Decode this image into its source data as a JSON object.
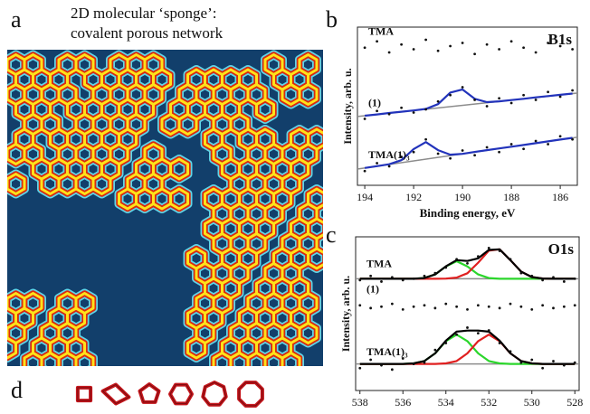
{
  "panel_labels": [
    "a",
    "b",
    "c",
    "d"
  ],
  "caption": [
    "2D molecular ‘sponge’:",
    "covalent porous network"
  ],
  "chart_data": [
    {
      "type": "line",
      "title": "B1s",
      "xlabel": "Binding energy, eV",
      "ylabel": "Intensity, arb. u.",
      "xlim": [
        194.3,
        185.3
      ],
      "ylim": [
        0,
        10
      ],
      "xticks": [
        194,
        192,
        190,
        188,
        186
      ],
      "x": [
        194,
        193.5,
        193,
        192.5,
        192,
        191.5,
        191,
        190.5,
        190,
        189.5,
        189,
        188.5,
        188,
        187.5,
        187,
        186.5,
        186,
        185.5
      ],
      "series": [
        {
          "name": "TMA",
          "color": "#111111",
          "dots": [
            8.7,
            9.1,
            8.4,
            8.9,
            8.6,
            9.2,
            8.5,
            8.8,
            9.0,
            8.3,
            8.9,
            8.6,
            9.1,
            8.7,
            8.4,
            9.0,
            8.8,
            8.6
          ],
          "fits": []
        },
        {
          "name": "(1)",
          "color": "#111111",
          "dots": [
            4.2,
            4.7,
            4.5,
            4.9,
            4.6,
            4.8,
            5.3,
            5.7,
            6.2,
            5.4,
            5.0,
            5.5,
            5.2,
            5.7,
            5.4,
            5.9,
            5.6,
            6.0
          ],
          "baseline": [
            4.35,
            5.83
          ],
          "baseline_color": "#8c8c8c",
          "fits": [
            {
              "color": "#2233bb",
              "values": [
                4.4,
                4.48,
                4.57,
                4.65,
                4.73,
                4.83,
                5.13,
                5.86,
                6.06,
                5.47,
                5.26,
                5.31,
                5.39,
                5.47,
                5.56,
                5.64,
                5.72,
                5.8
              ]
            }
          ]
        },
        {
          "name": "TMA(1)₃",
          "color": "#111111",
          "dots": [
            0.9,
            1.4,
            1.2,
            1.8,
            2.1,
            2.9,
            2.0,
            1.7,
            2.2,
            1.9,
            2.4,
            2.1,
            2.6,
            2.3,
            2.8,
            2.6,
            3.1,
            2.9
          ],
          "baseline": [
            1.03,
            3.04
          ],
          "baseline_color": "#8c8c8c",
          "fits": [
            {
              "color": "#2233bb",
              "values": [
                1.1,
                1.21,
                1.33,
                1.59,
                2.29,
                2.73,
                2.22,
                1.94,
                1.99,
                2.11,
                2.22,
                2.33,
                2.44,
                2.55,
                2.66,
                2.78,
                2.89,
                3.0
              ]
            }
          ]
        }
      ]
    },
    {
      "type": "line",
      "title": "O1s",
      "xlabel": "Binding energy, eV",
      "ylabel": "Intensity, arb. u.",
      "xlim": [
        538.2,
        527.8
      ],
      "ylim": [
        0,
        11
      ],
      "xticks": [
        538,
        536,
        534,
        532,
        530,
        528
      ],
      "x": [
        538,
        537.5,
        537,
        536.5,
        536,
        535.5,
        535,
        534.5,
        534,
        533.5,
        533,
        532.5,
        532,
        531.5,
        531,
        530.5,
        530,
        529.5,
        529,
        528.5,
        528
      ],
      "series": [
        {
          "name": "TMA",
          "color": "#111111",
          "dots": [
            7.9,
            8.2,
            7.8,
            8.1,
            7.9,
            8.0,
            8.2,
            8.4,
            8.8,
            9.4,
            9.1,
            9.6,
            10.2,
            10.0,
            9.4,
            8.4,
            8.2,
            7.9,
            8.1,
            7.8,
            8.0
          ],
          "baseline": [
            8.0,
            8.0
          ],
          "baseline_color": "#8c8c8c",
          "fits": [
            {
              "color": "#2bd62b",
              "values": [
                8.0,
                8.0,
                8.0,
                8.0,
                8.0,
                8.0,
                8.05,
                8.31,
                8.88,
                9.25,
                8.88,
                8.31,
                8.05,
                8.0,
                8.0,
                8.0,
                8.0,
                8.0,
                8.0,
                8.0,
                8.0
              ]
            },
            {
              "color": "#e02020",
              "values": [
                8.0,
                8.0,
                8.0,
                8.0,
                8.0,
                8.0,
                8.0,
                8.0,
                8.01,
                8.08,
                8.39,
                9.15,
                10.01,
                10.11,
                9.33,
                8.51,
                8.12,
                8.02,
                8.0,
                8.0,
                8.0
              ]
            },
            {
              "color": "#000000",
              "values": [
                8.0,
                8.0,
                8.0,
                8.0,
                8.0,
                8.0,
                8.05,
                8.31,
                8.89,
                9.33,
                9.27,
                9.46,
                10.06,
                10.11,
                9.33,
                8.51,
                8.12,
                8.02,
                8.0,
                8.0,
                8.0
              ]
            }
          ]
        },
        {
          "name": "(1)",
          "color": "#111111",
          "dots": [
            6.1,
            5.9,
            6.0,
            6.2,
            5.8,
            6.0,
            6.1,
            5.9,
            6.2,
            6.0,
            5.8,
            6.1,
            6.0,
            5.9,
            6.2,
            6.0,
            5.8,
            6.1,
            5.9,
            6.0,
            6.1
          ],
          "fits": []
        },
        {
          "name": "TMA(1)₃",
          "color": "#111111",
          "dots": [
            1.6,
            2.2,
            1.8,
            1.5,
            2.3,
            1.9,
            2.0,
            2.9,
            3.4,
            4.0,
            4.5,
            4.1,
            4.3,
            3.4,
            2.8,
            2.0,
            2.2,
            1.6,
            2.1,
            1.8,
            2.0
          ],
          "baseline": [
            1.9,
            1.9
          ],
          "baseline_color": "#8c8c8c",
          "fits": [
            {
              "color": "#2bd62b",
              "values": [
                1.9,
                1.9,
                1.9,
                1.9,
                1.9,
                1.94,
                2.11,
                2.66,
                3.53,
                4.0,
                3.53,
                2.66,
                2.11,
                1.94,
                1.9,
                1.9,
                1.9,
                1.9,
                1.9,
                1.9,
                1.9
              ]
            },
            {
              "color": "#e02020",
              "values": [
                1.9,
                1.9,
                1.9,
                1.9,
                1.9,
                1.9,
                1.9,
                1.9,
                1.94,
                2.11,
                2.66,
                3.53,
                4.0,
                3.53,
                2.66,
                2.11,
                1.94,
                1.9,
                1.9,
                1.9,
                1.9
              ]
            },
            {
              "color": "#000000",
              "values": [
                1.9,
                1.9,
                1.9,
                1.9,
                1.9,
                1.94,
                2.11,
                2.66,
                3.57,
                4.21,
                4.29,
                4.29,
                4.21,
                3.57,
                2.66,
                2.11,
                1.94,
                1.9,
                1.9,
                1.9,
                1.9
              ]
            }
          ]
        }
      ]
    }
  ]
}
